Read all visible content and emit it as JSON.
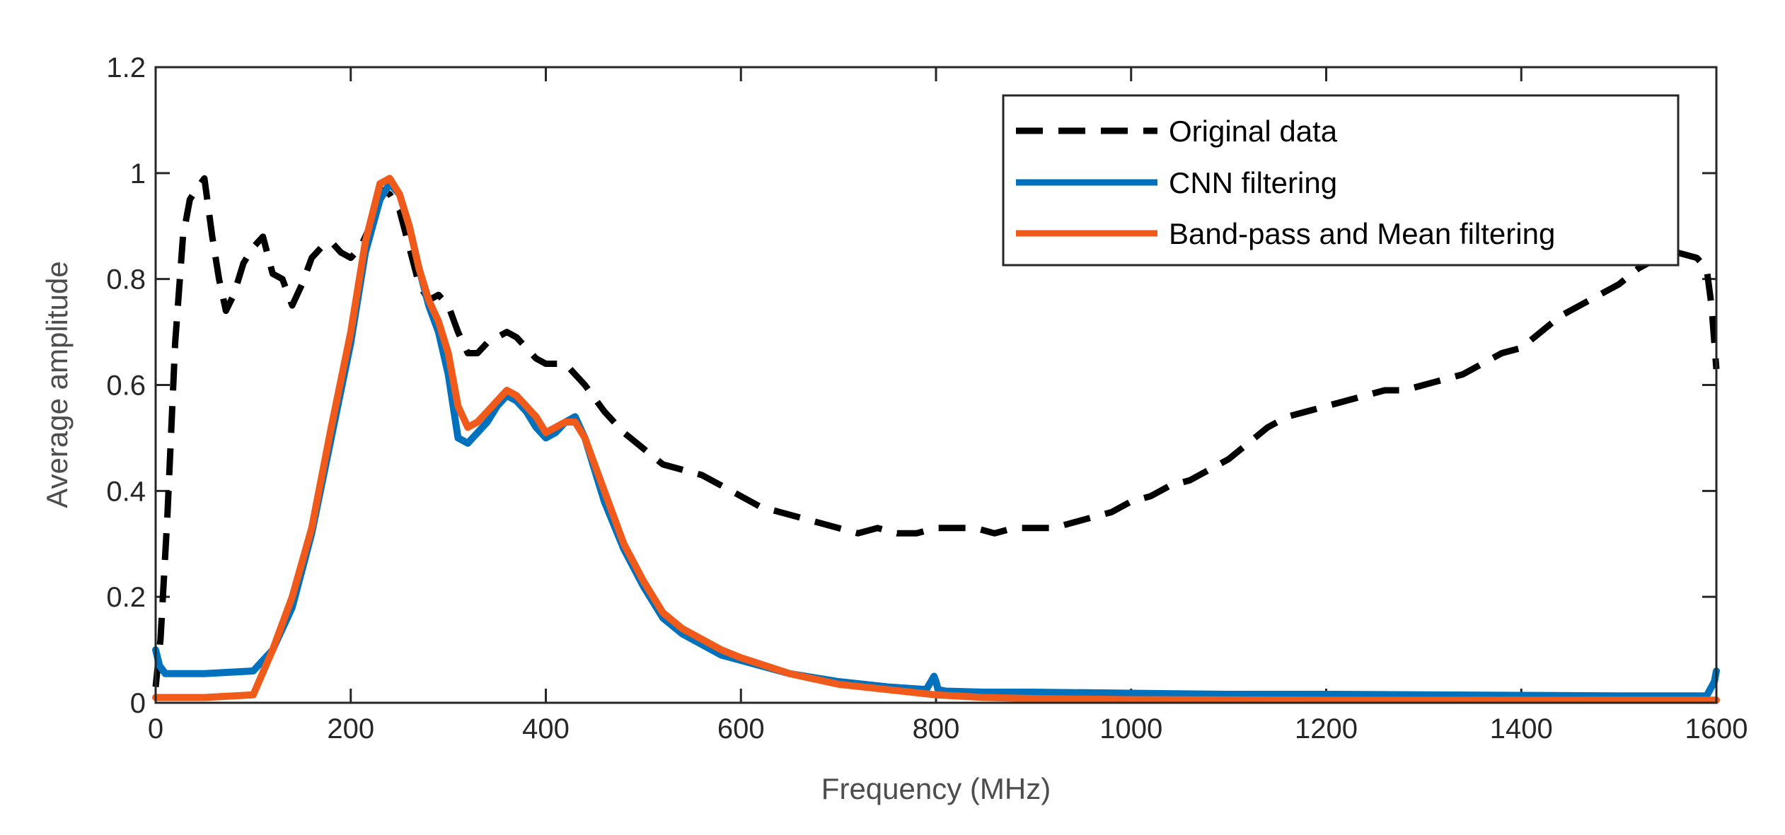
{
  "chart_data": {
    "type": "line",
    "title": "",
    "xlabel": "Frequency (MHz)",
    "ylabel": "Average amplitude",
    "xlim": [
      0,
      1600
    ],
    "ylim": [
      0,
      1.2
    ],
    "xticks": [
      0,
      200,
      400,
      600,
      800,
      1000,
      1200,
      1400,
      1600
    ],
    "yticks": [
      0,
      0.2,
      0.4,
      0.6,
      0.8,
      1,
      1.2
    ],
    "xtick_labels": [
      "0",
      "200",
      "400",
      "600",
      "800",
      "1000",
      "1200",
      "1400",
      "1600"
    ],
    "ytick_labels": [
      "0",
      "0.2",
      "0.4",
      "0.6",
      "0.8",
      "1",
      "1.2"
    ],
    "legend_position": "top-right",
    "series": [
      {
        "name": "Original data",
        "color": "#000000",
        "dash": "dashed",
        "x": [
          0,
          5,
          12,
          20,
          28,
          35,
          42,
          50,
          58,
          65,
          72,
          80,
          90,
          100,
          110,
          120,
          130,
          140,
          150,
          160,
          170,
          180,
          190,
          200,
          210,
          220,
          230,
          240,
          250,
          260,
          270,
          280,
          290,
          300,
          310,
          320,
          330,
          340,
          350,
          360,
          370,
          380,
          390,
          400,
          410,
          420,
          430,
          440,
          460,
          480,
          500,
          520,
          540,
          560,
          580,
          600,
          620,
          640,
          660,
          680,
          700,
          720,
          740,
          760,
          780,
          800,
          820,
          840,
          860,
          880,
          900,
          920,
          940,
          960,
          980,
          1000,
          1020,
          1040,
          1060,
          1080,
          1100,
          1120,
          1140,
          1160,
          1180,
          1200,
          1220,
          1240,
          1260,
          1280,
          1300,
          1320,
          1340,
          1360,
          1380,
          1400,
          1420,
          1440,
          1460,
          1480,
          1500,
          1520,
          1540,
          1560,
          1580,
          1590,
          1595,
          1600
        ],
        "y": [
          0.03,
          0.12,
          0.35,
          0.68,
          0.88,
          0.95,
          0.97,
          0.99,
          0.88,
          0.8,
          0.74,
          0.77,
          0.83,
          0.86,
          0.88,
          0.81,
          0.8,
          0.75,
          0.79,
          0.84,
          0.86,
          0.87,
          0.85,
          0.84,
          0.86,
          0.9,
          0.97,
          0.96,
          0.93,
          0.86,
          0.79,
          0.76,
          0.77,
          0.75,
          0.7,
          0.66,
          0.66,
          0.68,
          0.69,
          0.7,
          0.69,
          0.67,
          0.65,
          0.64,
          0.64,
          0.64,
          0.62,
          0.6,
          0.55,
          0.51,
          0.48,
          0.45,
          0.44,
          0.43,
          0.41,
          0.39,
          0.37,
          0.36,
          0.35,
          0.34,
          0.33,
          0.32,
          0.33,
          0.32,
          0.32,
          0.33,
          0.33,
          0.33,
          0.32,
          0.33,
          0.33,
          0.33,
          0.34,
          0.35,
          0.36,
          0.38,
          0.39,
          0.41,
          0.42,
          0.44,
          0.46,
          0.49,
          0.52,
          0.54,
          0.55,
          0.56,
          0.57,
          0.58,
          0.59,
          0.59,
          0.6,
          0.61,
          0.62,
          0.64,
          0.66,
          0.67,
          0.7,
          0.73,
          0.75,
          0.77,
          0.79,
          0.82,
          0.84,
          0.85,
          0.84,
          0.82,
          0.75,
          0.63
        ]
      },
      {
        "name": "CNN filtering",
        "color": "#0072bd",
        "dash": "solid",
        "x": [
          0,
          4,
          10,
          50,
          100,
          120,
          140,
          160,
          180,
          200,
          215,
          230,
          240,
          250,
          260,
          270,
          280,
          290,
          300,
          310,
          320,
          330,
          340,
          350,
          360,
          370,
          380,
          390,
          400,
          410,
          420,
          430,
          440,
          450,
          460,
          480,
          500,
          520,
          540,
          560,
          580,
          600,
          650,
          700,
          750,
          790,
          798,
          800,
          802,
          810,
          850,
          900,
          1000,
          1100,
          1200,
          1300,
          1400,
          1500,
          1590,
          1598,
          1600
        ],
        "y": [
          0.1,
          0.07,
          0.055,
          0.055,
          0.06,
          0.1,
          0.18,
          0.32,
          0.5,
          0.68,
          0.85,
          0.95,
          0.98,
          0.96,
          0.9,
          0.82,
          0.75,
          0.7,
          0.62,
          0.5,
          0.49,
          0.51,
          0.53,
          0.56,
          0.58,
          0.57,
          0.55,
          0.52,
          0.5,
          0.51,
          0.53,
          0.54,
          0.5,
          0.44,
          0.38,
          0.29,
          0.22,
          0.16,
          0.13,
          0.11,
          0.09,
          0.08,
          0.055,
          0.04,
          0.03,
          0.025,
          0.05,
          0.04,
          0.025,
          0.022,
          0.02,
          0.02,
          0.018,
          0.016,
          0.016,
          0.015,
          0.014,
          0.013,
          0.013,
          0.04,
          0.06
        ]
      },
      {
        "name": "Band-pass and Mean filtering",
        "color": "#f05a1a",
        "dash": "solid",
        "x": [
          0,
          50,
          100,
          120,
          140,
          160,
          180,
          200,
          215,
          230,
          240,
          250,
          260,
          270,
          280,
          290,
          300,
          310,
          320,
          330,
          340,
          350,
          360,
          370,
          380,
          390,
          400,
          410,
          420,
          430,
          440,
          450,
          460,
          480,
          500,
          520,
          540,
          560,
          580,
          600,
          650,
          700,
          750,
          800,
          850,
          900,
          1000,
          1200,
          1400,
          1600
        ],
        "y": [
          0.01,
          0.01,
          0.015,
          0.1,
          0.2,
          0.33,
          0.52,
          0.7,
          0.87,
          0.98,
          0.99,
          0.96,
          0.9,
          0.82,
          0.76,
          0.72,
          0.66,
          0.56,
          0.52,
          0.53,
          0.55,
          0.57,
          0.59,
          0.58,
          0.56,
          0.54,
          0.51,
          0.52,
          0.53,
          0.53,
          0.5,
          0.45,
          0.4,
          0.3,
          0.23,
          0.17,
          0.14,
          0.12,
          0.1,
          0.085,
          0.055,
          0.035,
          0.025,
          0.015,
          0.01,
          0.008,
          0.006,
          0.005,
          0.005,
          0.005
        ]
      }
    ]
  }
}
